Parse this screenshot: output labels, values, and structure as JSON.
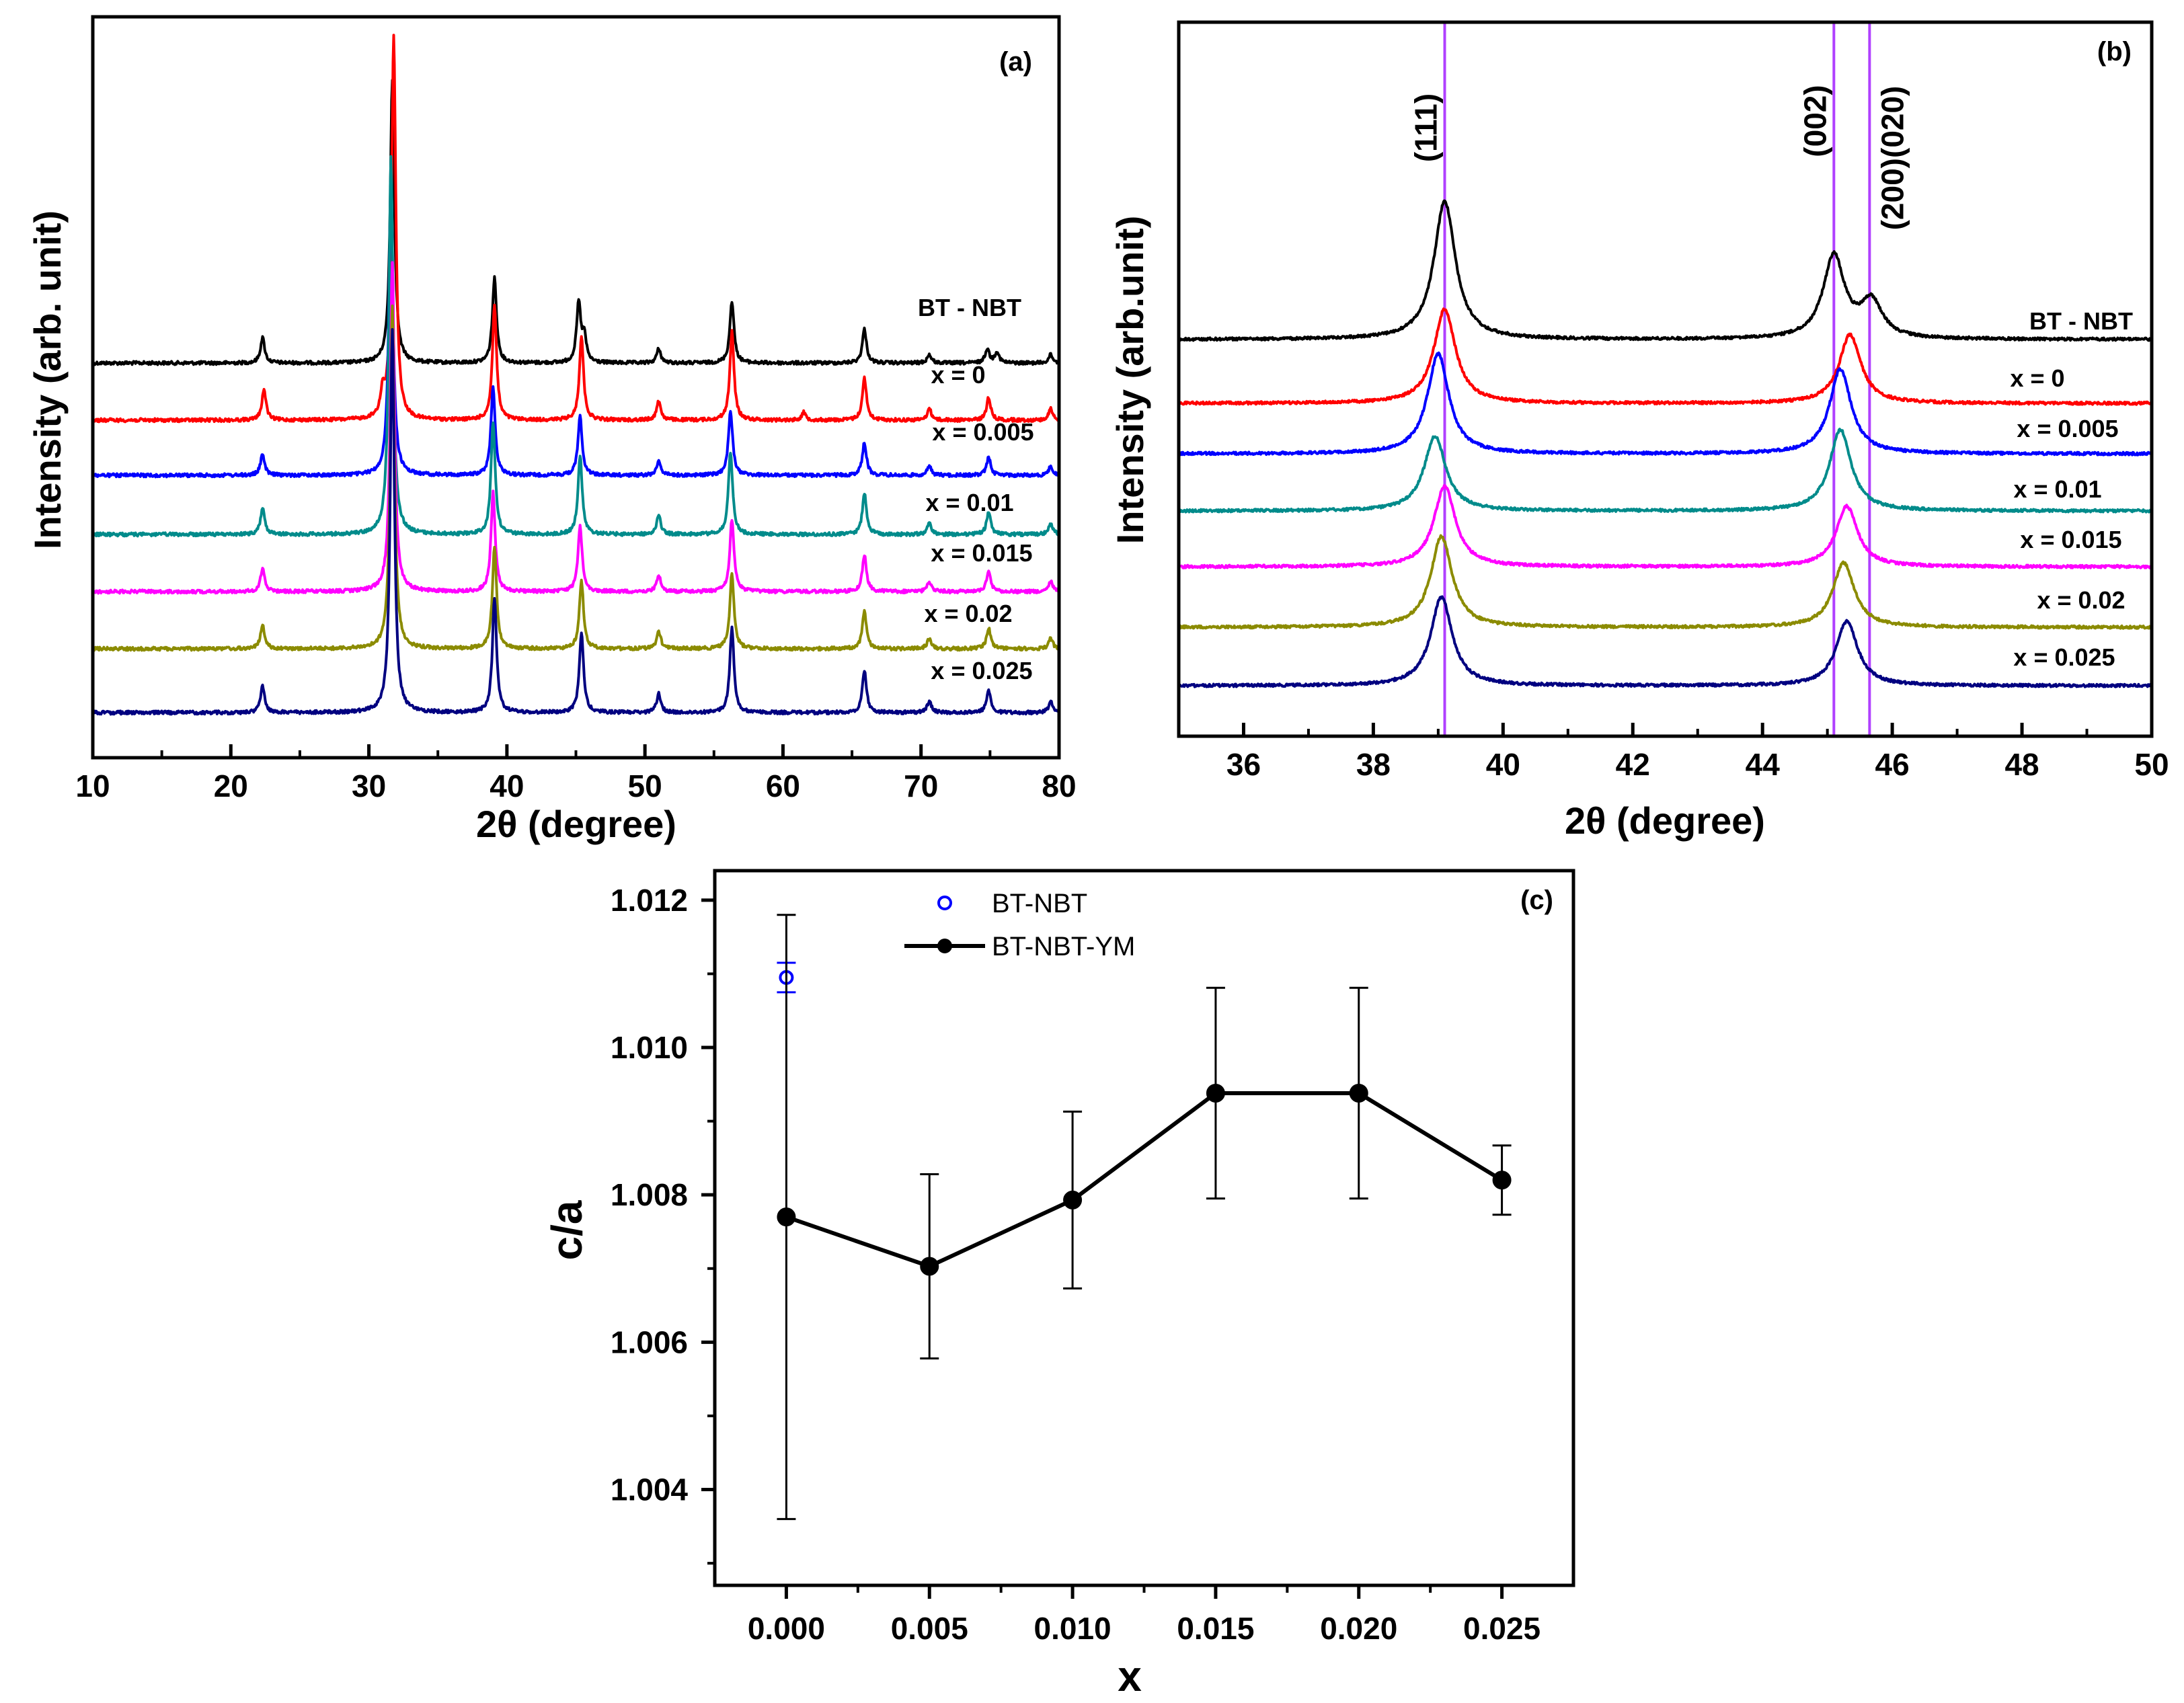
{
  "chart_data": [
    {
      "type": "line",
      "panel": "(a)",
      "xlabel": "2θ (degree)",
      "ylabel": "Intensity (arb. unit)",
      "xlim": [
        10,
        80
      ],
      "xticks": [
        10,
        20,
        30,
        40,
        50,
        60,
        70,
        80
      ],
      "series": [
        {
          "name": "BT - NBT",
          "color": "#000000",
          "peaks": [
            [
              22.3,
              0.09
            ],
            [
              31.7,
              1.0
            ],
            [
              39.1,
              0.3
            ],
            [
              45.2,
              0.21
            ],
            [
              45.6,
              0.09
            ],
            [
              51.0,
              0.05
            ],
            [
              56.3,
              0.22
            ],
            [
              65.9,
              0.12
            ],
            [
              70.6,
              0.03
            ],
            [
              74.8,
              0.05
            ],
            [
              75.5,
              0.04
            ],
            [
              79.4,
              0.03
            ]
          ]
        },
        {
          "name": "x = 0",
          "color": "#ff0000",
          "peaks": [
            [
              22.4,
              0.08
            ],
            [
              31.0,
              0.06
            ],
            [
              31.8,
              1.0
            ],
            [
              39.1,
              0.3
            ],
            [
              45.4,
              0.22
            ],
            [
              51.0,
              0.05
            ],
            [
              56.3,
              0.23
            ],
            [
              61.5,
              0.02
            ],
            [
              65.9,
              0.11
            ],
            [
              70.6,
              0.03
            ],
            [
              74.9,
              0.06
            ],
            [
              79.4,
              0.03
            ]
          ]
        },
        {
          "name": "x = 0.005",
          "color": "#0000ff",
          "peaks": [
            [
              22.3,
              0.07
            ],
            [
              31.6,
              1.0
            ],
            [
              39.0,
              0.3
            ],
            [
              45.3,
              0.2
            ],
            [
              51.0,
              0.05
            ],
            [
              56.2,
              0.22
            ],
            [
              65.9,
              0.11
            ],
            [
              70.6,
              0.03
            ],
            [
              74.9,
              0.06
            ],
            [
              79.4,
              0.03
            ]
          ]
        },
        {
          "name": "x = 0.01",
          "color": "#008b8b",
          "peaks": [
            [
              22.3,
              0.07
            ],
            [
              31.6,
              1.0
            ],
            [
              39.0,
              0.3
            ],
            [
              45.3,
              0.21
            ],
            [
              51.0,
              0.05
            ],
            [
              56.2,
              0.22
            ],
            [
              65.9,
              0.11
            ],
            [
              70.6,
              0.03
            ],
            [
              74.9,
              0.06
            ],
            [
              79.4,
              0.03
            ]
          ]
        },
        {
          "name": "x = 0.015",
          "color": "#ff00ff",
          "peaks": [
            [
              22.3,
              0.07
            ],
            [
              31.7,
              1.0
            ],
            [
              39.0,
              0.3
            ],
            [
              45.3,
              0.2
            ],
            [
              51.0,
              0.05
            ],
            [
              56.3,
              0.22
            ],
            [
              65.9,
              0.11
            ],
            [
              70.6,
              0.03
            ],
            [
              74.9,
              0.06
            ],
            [
              79.4,
              0.03
            ]
          ]
        },
        {
          "name": "x = 0.02",
          "color": "#8b8b00",
          "peaks": [
            [
              22.3,
              0.07
            ],
            [
              31.7,
              1.0
            ],
            [
              39.1,
              0.3
            ],
            [
              45.4,
              0.2
            ],
            [
              51.0,
              0.05
            ],
            [
              56.3,
              0.22
            ],
            [
              65.9,
              0.11
            ],
            [
              70.6,
              0.03
            ],
            [
              74.9,
              0.06
            ],
            [
              79.4,
              0.03
            ]
          ]
        },
        {
          "name": "x = 0.025",
          "color": "#000080",
          "peaks": [
            [
              22.3,
              0.07
            ],
            [
              31.7,
              1.0
            ],
            [
              39.1,
              0.3
            ],
            [
              45.4,
              0.21
            ],
            [
              51.0,
              0.05
            ],
            [
              56.3,
              0.22
            ],
            [
              65.9,
              0.11
            ],
            [
              70.6,
              0.03
            ],
            [
              74.9,
              0.06
            ],
            [
              79.4,
              0.03
            ]
          ]
        }
      ]
    },
    {
      "type": "line",
      "panel": "(b)",
      "xlabel": "2θ (degree)",
      "ylabel": "Intensity (arb.unit)",
      "xlim": [
        35,
        50
      ],
      "xticks": [
        36,
        38,
        40,
        42,
        44,
        46,
        48,
        50
      ],
      "reference_lines": [
        {
          "label": "(111)",
          "x": 39.1
        },
        {
          "label": "(002)",
          "x": 45.1
        },
        {
          "label": "(200)(020)",
          "x": 45.65
        }
      ],
      "series": [
        {
          "name": "BT - NBT",
          "color": "#000000",
          "peaks": [
            [
              39.1,
              1.0
            ],
            [
              45.1,
              0.6
            ],
            [
              45.68,
              0.26
            ]
          ]
        },
        {
          "name": "x = 0",
          "color": "#ff0000",
          "peaks": [
            [
              39.1,
              0.85
            ],
            [
              45.35,
              0.62
            ]
          ]
        },
        {
          "name": "x = 0.005",
          "color": "#0000ff",
          "peaks": [
            [
              39.0,
              0.85
            ],
            [
              45.2,
              0.72
            ]
          ]
        },
        {
          "name": "x = 0.01",
          "color": "#008b8b",
          "peaks": [
            [
              38.95,
              0.72
            ],
            [
              45.2,
              0.78
            ]
          ]
        },
        {
          "name": "x = 0.015",
          "color": "#ff00ff",
          "peaks": [
            [
              39.1,
              0.8
            ],
            [
              45.3,
              0.6
            ]
          ]
        },
        {
          "name": "x = 0.02",
          "color": "#8b8b00",
          "peaks": [
            [
              39.05,
              0.87
            ],
            [
              45.25,
              0.62
            ]
          ]
        },
        {
          "name": "x = 0.025",
          "color": "#000080",
          "peaks": [
            [
              39.05,
              0.88
            ],
            [
              45.3,
              0.64
            ]
          ]
        }
      ]
    },
    {
      "type": "line",
      "panel": "(c)",
      "xlabel": "x",
      "ylabel": "c/a",
      "xlim": [
        -0.0025,
        0.0275
      ],
      "ylim": [
        1.0027,
        1.0124
      ],
      "xticks": [
        "0.000",
        "0.005",
        "0.010",
        "0.015",
        "0.020",
        "0.025"
      ],
      "yticks": [
        "1.004",
        "1.006",
        "1.008",
        "1.010",
        "1.012"
      ],
      "legend": "top-center",
      "series": [
        {
          "name": "BT-NBT",
          "marker": "open-circle",
          "color": "#0000ff",
          "x": [
            0.0
          ],
          "y": [
            1.01095
          ],
          "err": [
            0.0002
          ]
        },
        {
          "name": "BT-NBT-YM",
          "marker": "filled-circle",
          "color": "#000000",
          "x": [
            0.0,
            0.005,
            0.01,
            0.015,
            0.02,
            0.025
          ],
          "y": [
            1.0077,
            1.00703,
            1.00793,
            1.00938,
            1.00938,
            1.0082
          ],
          "err": [
            0.0041,
            0.00125,
            0.0012,
            0.00143,
            0.00143,
            0.00047
          ]
        }
      ]
    }
  ]
}
